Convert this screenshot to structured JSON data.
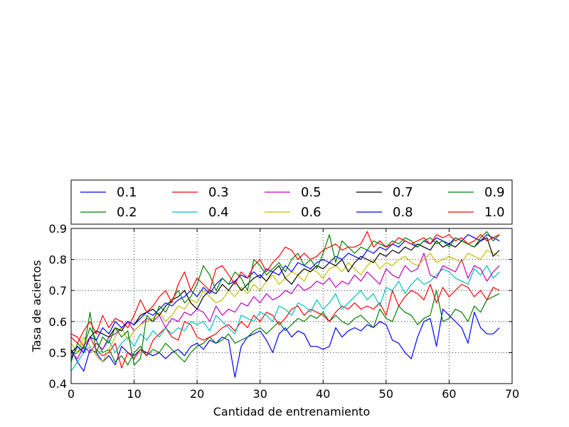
{
  "chart_data": {
    "type": "line",
    "xlabel": "Cantidad de entrenamiento",
    "ylabel": "Tasa de aciertos",
    "xlim": [
      0,
      70
    ],
    "ylim": [
      0.4,
      0.9
    ],
    "xticks": [
      "0",
      "10",
      "20",
      "30",
      "40",
      "50",
      "60",
      "70"
    ],
    "yticks": [
      "0.4",
      "0.5",
      "0.6",
      "0.7",
      "0.8",
      "0.9"
    ],
    "grid": true,
    "legend_position": "top",
    "legend_columns": 5,
    "x": [
      0,
      1,
      2,
      3,
      4,
      5,
      6,
      7,
      8,
      9,
      10,
      11,
      12,
      13,
      14,
      15,
      16,
      17,
      18,
      19,
      20,
      21,
      22,
      23,
      24,
      25,
      26,
      27,
      28,
      29,
      30,
      31,
      32,
      33,
      34,
      35,
      36,
      37,
      38,
      39,
      40,
      41,
      42,
      43,
      44,
      45,
      46,
      47,
      48,
      49,
      50,
      51,
      52,
      53,
      54,
      55,
      56,
      57,
      58,
      59,
      60,
      61,
      62,
      63,
      64,
      65,
      66,
      67,
      68
    ],
    "series": [
      {
        "name": "0.1",
        "color": "#0000ff",
        "values": [
          0.51,
          0.47,
          0.44,
          0.51,
          0.5,
          0.47,
          0.49,
          0.46,
          0.52,
          0.5,
          0.49,
          0.51,
          0.5,
          0.49,
          0.5,
          0.48,
          0.5,
          0.51,
          0.49,
          0.52,
          0.53,
          0.51,
          0.54,
          0.53,
          0.55,
          0.54,
          0.42,
          0.52,
          0.55,
          0.56,
          0.57,
          0.54,
          0.5,
          0.56,
          0.58,
          0.55,
          0.57,
          0.56,
          0.52,
          0.52,
          0.51,
          0.52,
          0.58,
          0.55,
          0.57,
          0.58,
          0.57,
          0.59,
          0.58,
          0.6,
          0.59,
          0.54,
          0.53,
          0.5,
          0.48,
          0.55,
          0.6,
          0.61,
          0.52,
          0.64,
          0.62,
          0.6,
          0.58,
          0.53,
          0.63,
          0.58,
          0.56,
          0.56,
          0.58
        ]
      },
      {
        "name": "0.2",
        "color": "#008000",
        "values": [
          0.49,
          0.5,
          0.52,
          0.58,
          0.54,
          0.5,
          0.51,
          0.47,
          0.49,
          0.46,
          0.5,
          0.52,
          0.49,
          0.51,
          0.5,
          0.53,
          0.51,
          0.49,
          0.47,
          0.5,
          0.52,
          0.53,
          0.55,
          0.53,
          0.54,
          0.56,
          0.53,
          0.54,
          0.55,
          0.57,
          0.58,
          0.56,
          0.58,
          0.6,
          0.57,
          0.59,
          0.61,
          0.6,
          0.62,
          0.61,
          0.63,
          0.6,
          0.62,
          0.6,
          0.59,
          0.61,
          0.62,
          0.6,
          0.58,
          0.64,
          0.61,
          0.6,
          0.65,
          0.63,
          0.62,
          0.59,
          0.61,
          0.62,
          0.7,
          0.6,
          0.61,
          0.64,
          0.63,
          0.6,
          0.65,
          0.63,
          0.67,
          0.68,
          0.69
        ]
      },
      {
        "name": "0.3",
        "color": "#ff0000",
        "values": [
          0.56,
          0.55,
          0.52,
          0.55,
          0.51,
          0.49,
          0.5,
          0.53,
          0.45,
          0.5,
          0.48,
          0.51,
          0.49,
          0.54,
          0.56,
          0.58,
          0.55,
          0.54,
          0.6,
          0.59,
          0.55,
          0.54,
          0.55,
          0.56,
          0.58,
          0.59,
          0.57,
          0.6,
          0.58,
          0.62,
          0.6,
          0.63,
          0.62,
          0.59,
          0.61,
          0.64,
          0.65,
          0.62,
          0.64,
          0.63,
          0.62,
          0.6,
          0.63,
          0.65,
          0.64,
          0.66,
          0.64,
          0.65,
          0.64,
          0.66,
          0.62,
          0.7,
          0.65,
          0.68,
          0.7,
          0.69,
          0.67,
          0.72,
          0.66,
          0.71,
          0.68,
          0.7,
          0.72,
          0.71,
          0.68,
          0.7,
          0.67,
          0.71,
          0.7
        ]
      },
      {
        "name": "0.4",
        "color": "#00bfbf",
        "values": [
          0.44,
          0.47,
          0.5,
          0.52,
          0.49,
          0.51,
          0.54,
          0.5,
          0.53,
          0.55,
          0.52,
          0.56,
          0.54,
          0.57,
          0.55,
          0.58,
          0.56,
          0.58,
          0.57,
          0.6,
          0.59,
          0.6,
          0.57,
          0.62,
          0.6,
          0.58,
          0.56,
          0.62,
          0.61,
          0.6,
          0.63,
          0.62,
          0.6,
          0.65,
          0.64,
          0.62,
          0.66,
          0.65,
          0.63,
          0.67,
          0.64,
          0.66,
          0.69,
          0.64,
          0.66,
          0.68,
          0.7,
          0.67,
          0.69,
          0.65,
          0.71,
          0.7,
          0.73,
          0.69,
          0.72,
          0.74,
          0.72,
          0.73,
          0.75,
          0.77,
          0.76,
          0.74,
          0.73,
          0.72,
          0.77,
          0.75,
          0.78,
          0.74,
          0.76
        ]
      },
      {
        "name": "0.5",
        "color": "#bf00bf",
        "values": [
          0.5,
          0.48,
          0.52,
          0.5,
          0.53,
          0.51,
          0.55,
          0.56,
          0.58,
          0.6,
          0.57,
          0.59,
          0.61,
          0.6,
          0.62,
          0.58,
          0.61,
          0.6,
          0.63,
          0.62,
          0.64,
          0.63,
          0.6,
          0.65,
          0.62,
          0.64,
          0.63,
          0.66,
          0.65,
          0.68,
          0.66,
          0.69,
          0.67,
          0.68,
          0.7,
          0.69,
          0.72,
          0.7,
          0.71,
          0.73,
          0.72,
          0.74,
          0.71,
          0.73,
          0.72,
          0.75,
          0.73,
          0.76,
          0.74,
          0.72,
          0.77,
          0.75,
          0.74,
          0.78,
          0.76,
          0.77,
          0.82,
          0.75,
          0.74,
          0.78,
          0.77,
          0.76,
          0.8,
          0.74,
          0.78,
          0.77,
          0.73,
          0.76,
          0.78
        ]
      },
      {
        "name": "0.6",
        "color": "#bfbf00",
        "values": [
          0.53,
          0.5,
          0.55,
          0.52,
          0.49,
          0.47,
          0.51,
          0.55,
          0.58,
          0.54,
          0.57,
          0.59,
          0.6,
          0.61,
          0.63,
          0.6,
          0.62,
          0.65,
          0.64,
          0.67,
          0.66,
          0.7,
          0.68,
          0.66,
          0.67,
          0.7,
          0.68,
          0.71,
          0.69,
          0.72,
          0.7,
          0.73,
          0.75,
          0.72,
          0.74,
          0.76,
          0.75,
          0.73,
          0.77,
          0.76,
          0.74,
          0.77,
          0.78,
          0.76,
          0.79,
          0.77,
          0.75,
          0.78,
          0.8,
          0.77,
          0.79,
          0.78,
          0.8,
          0.81,
          0.79,
          0.78,
          0.8,
          0.82,
          0.79,
          0.8,
          0.81,
          0.8,
          0.79,
          0.82,
          0.81,
          0.8,
          0.83,
          0.82,
          0.81
        ]
      },
      {
        "name": "0.7",
        "color": "#000000",
        "values": [
          0.5,
          0.52,
          0.5,
          0.55,
          0.57,
          0.56,
          0.55,
          0.58,
          0.57,
          0.6,
          0.59,
          0.62,
          0.63,
          0.64,
          0.62,
          0.65,
          0.67,
          0.68,
          0.7,
          0.66,
          0.64,
          0.68,
          0.7,
          0.69,
          0.72,
          0.7,
          0.73,
          0.7,
          0.72,
          0.74,
          0.75,
          0.73,
          0.76,
          0.78,
          0.74,
          0.72,
          0.75,
          0.77,
          0.76,
          0.78,
          0.77,
          0.79,
          0.78,
          0.8,
          0.76,
          0.79,
          0.81,
          0.8,
          0.79,
          0.82,
          0.81,
          0.83,
          0.82,
          0.84,
          0.83,
          0.85,
          0.84,
          0.83,
          0.86,
          0.84,
          0.85,
          0.84,
          0.86,
          0.85,
          0.84,
          0.86,
          0.87,
          0.81,
          0.83
        ]
      },
      {
        "name": "0.8",
        "color": "#0000ff",
        "values": [
          0.48,
          0.52,
          0.5,
          0.55,
          0.54,
          0.58,
          0.56,
          0.6,
          0.58,
          0.6,
          0.59,
          0.61,
          0.63,
          0.62,
          0.64,
          0.66,
          0.65,
          0.67,
          0.68,
          0.7,
          0.68,
          0.71,
          0.69,
          0.72,
          0.74,
          0.72,
          0.73,
          0.75,
          0.74,
          0.76,
          0.74,
          0.77,
          0.76,
          0.75,
          0.78,
          0.76,
          0.79,
          0.78,
          0.77,
          0.79,
          0.8,
          0.79,
          0.81,
          0.8,
          0.82,
          0.81,
          0.8,
          0.83,
          0.82,
          0.84,
          0.83,
          0.85,
          0.84,
          0.86,
          0.85,
          0.84,
          0.86,
          0.85,
          0.87,
          0.86,
          0.85,
          0.87,
          0.86,
          0.88,
          0.87,
          0.86,
          0.88,
          0.87,
          0.86
        ]
      },
      {
        "name": "0.9",
        "color": "#008000",
        "values": [
          0.47,
          0.53,
          0.51,
          0.63,
          0.5,
          0.55,
          0.53,
          0.58,
          0.55,
          0.57,
          0.46,
          0.48,
          0.62,
          0.6,
          0.65,
          0.63,
          0.67,
          0.7,
          0.66,
          0.68,
          0.72,
          0.78,
          0.75,
          0.7,
          0.74,
          0.72,
          0.76,
          0.74,
          0.7,
          0.8,
          0.78,
          0.75,
          0.77,
          0.79,
          0.76,
          0.8,
          0.82,
          0.78,
          0.8,
          0.77,
          0.82,
          0.88,
          0.79,
          0.86,
          0.84,
          0.82,
          0.84,
          0.83,
          0.86,
          0.85,
          0.84,
          0.86,
          0.85,
          0.87,
          0.86,
          0.84,
          0.86,
          0.87,
          0.85,
          0.86,
          0.84,
          0.87,
          0.86,
          0.85,
          0.84,
          0.87,
          0.89,
          0.86,
          0.88
        ]
      },
      {
        "name": "1.0",
        "color": "#ff0000",
        "values": [
          0.55,
          0.53,
          0.57,
          0.6,
          0.56,
          0.62,
          0.58,
          0.61,
          0.6,
          0.58,
          0.62,
          0.67,
          0.63,
          0.65,
          0.68,
          0.7,
          0.66,
          0.72,
          0.76,
          0.7,
          0.74,
          0.72,
          0.7,
          0.77,
          0.78,
          0.75,
          0.72,
          0.76,
          0.74,
          0.78,
          0.8,
          0.76,
          0.79,
          0.81,
          0.84,
          0.83,
          0.8,
          0.82,
          0.8,
          0.81,
          0.83,
          0.84,
          0.85,
          0.83,
          0.84,
          0.84,
          0.85,
          0.89,
          0.84,
          0.86,
          0.84,
          0.85,
          0.87,
          0.86,
          0.85,
          0.86,
          0.87,
          0.85,
          0.88,
          0.87,
          0.88,
          0.86,
          0.87,
          0.85,
          0.86,
          0.88,
          0.86,
          0.87,
          0.88
        ]
      }
    ]
  }
}
